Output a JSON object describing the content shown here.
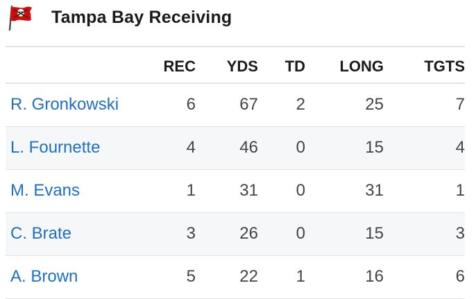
{
  "header": {
    "team_logo": "buccaneers-flag-logo",
    "title": "Tampa Bay Receiving"
  },
  "table": {
    "columns": [
      "",
      "REC",
      "YDS",
      "TD",
      "LONG",
      "TGTS"
    ],
    "rows": [
      {
        "player": "R. Gronkowski",
        "rec": "6",
        "yds": "67",
        "td": "2",
        "long": "25",
        "tgts": "7"
      },
      {
        "player": "L. Fournette",
        "rec": "4",
        "yds": "46",
        "td": "0",
        "long": "15",
        "tgts": "4"
      },
      {
        "player": "M. Evans",
        "rec": "1",
        "yds": "31",
        "td": "0",
        "long": "31",
        "tgts": "1"
      },
      {
        "player": "C. Brate",
        "rec": "3",
        "yds": "26",
        "td": "0",
        "long": "15",
        "tgts": "3"
      },
      {
        "player": "A. Brown",
        "rec": "5",
        "yds": "22",
        "td": "1",
        "long": "16",
        "tgts": "6"
      }
    ]
  },
  "colors": {
    "link": "#1f6fc5",
    "logo_red": "#d50a0a",
    "logo_pewter": "#34302b",
    "row_alt": "#f5f7f9"
  }
}
